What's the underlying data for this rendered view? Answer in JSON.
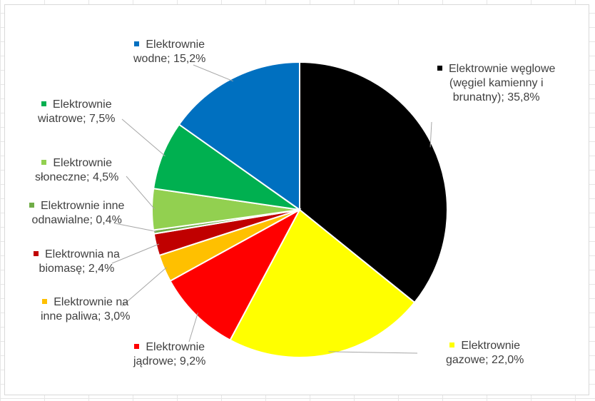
{
  "chart_data": {
    "type": "pie",
    "slices": [
      {
        "lines": [
          "Elektrownie węglowe",
          "(węgiel kamienny i",
          "brunatny); 35,8%"
        ],
        "value": 35.8,
        "color": "#000000"
      },
      {
        "lines": [
          "Elektrownie",
          "gazowe; 22,0%"
        ],
        "value": 22.0,
        "color": "#ffff00"
      },
      {
        "lines": [
          "Elektrownie",
          "jądrowe; 9,2%"
        ],
        "value": 9.2,
        "color": "#ff0000"
      },
      {
        "lines": [
          "Elektrownie na",
          "inne paliwa; 3,0%"
        ],
        "value": 3.0,
        "color": "#ffc000"
      },
      {
        "lines": [
          "Elektrownia na",
          "biomasę; 2,4%"
        ],
        "value": 2.4,
        "color": "#c00000"
      },
      {
        "lines": [
          "Elektrownie inne",
          "odnawialne; 0,4%"
        ],
        "value": 0.4,
        "color": "#70ad47"
      },
      {
        "lines": [
          "Elektrownie",
          "słoneczne; 4,5%"
        ],
        "value": 4.5,
        "color": "#92d050"
      },
      {
        "lines": [
          "Elektrownie",
          "wiatrowe; 7,5%"
        ],
        "value": 7.5,
        "color": "#00b050"
      },
      {
        "lines": [
          "Elektrownie",
          "wodne; 15,2%"
        ],
        "value": 15.2,
        "color": "#0070c0"
      }
    ]
  }
}
